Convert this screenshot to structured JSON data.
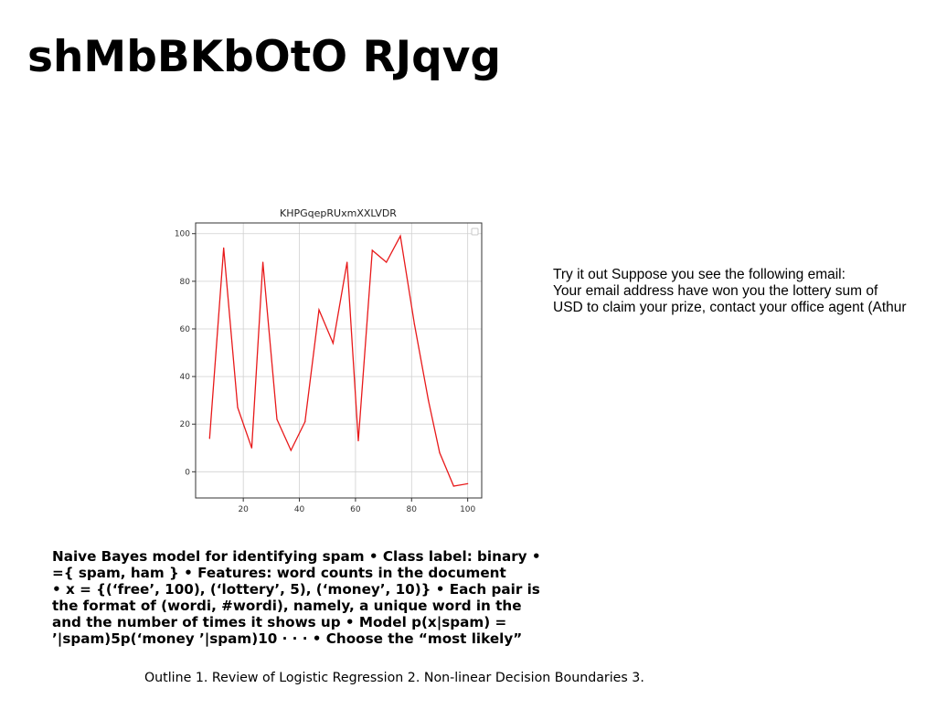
{
  "slide": {
    "title": "shMbBKbOtO RJqvg",
    "side_text": [
      "Try it out Suppose you see the following email:",
      "Your email address have won you the lottery sum of",
      "USD to claim your prize, contact your office agent (Athur"
    ],
    "naive_bayes_text": [
      "Naive Bayes model for identifying spam • Class label: binary •",
      "={ spam, ham } • Features: word counts in the document",
      "• x = {(‘free’, 100), (‘lottery’, 5), (‘money’, 10)} • Each pair is",
      "the format of (wordi, #wordi), namely, a unique word in the",
      "and the number of times it shows up • Model p(x|spam) =",
      "’|spam)5p(‘money ’|spam)10 · · · • Choose the “most likely”"
    ],
    "outline_text": "Outline 1. Review of Logistic Regression 2. Non-linear Decision Boundaries 3."
  },
  "chart_data": {
    "type": "line",
    "title": "KHPGqepRUxmXXLVDR",
    "xlabel": "",
    "ylabel": "",
    "x": [
      8,
      13,
      18,
      23,
      27,
      32,
      37,
      42,
      47,
      52,
      57,
      61,
      66,
      71,
      76,
      81,
      86,
      90,
      95,
      100
    ],
    "series": [
      {
        "values": [
          14,
          94,
          27,
          10,
          88,
          22,
          9,
          21,
          68,
          54,
          88,
          13,
          93,
          88,
          99,
          62,
          30,
          8,
          -6,
          -5
        ],
        "color": "#e8191a"
      }
    ],
    "xticks": [
      20,
      40,
      60,
      80,
      100
    ],
    "yticks": [
      0,
      20,
      40,
      60,
      80,
      100
    ],
    "xlim": [
      3,
      105
    ],
    "ylim": [
      -11,
      104.5
    ],
    "grid": true,
    "legend": "top-right"
  }
}
